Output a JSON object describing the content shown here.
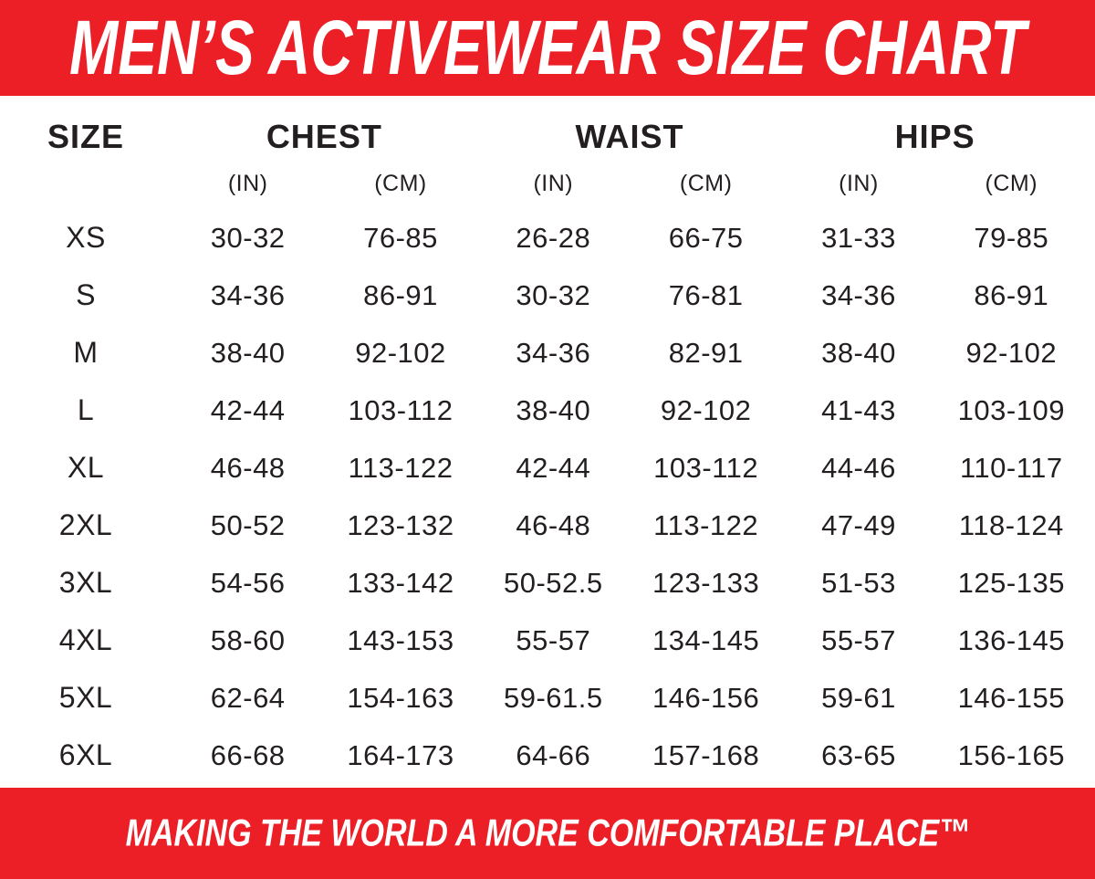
{
  "header": {
    "title": "MEN’S ACTIVEWEAR SIZE CHART"
  },
  "footer": {
    "tagline": "MAKING THE WORLD A MORE COMFORTABLE PLACE™"
  },
  "colors": {
    "banner_red": "#EC1E26",
    "banner_text": "#FFFFFF",
    "text_dark": "#231F20",
    "background": "#FFFFFF"
  },
  "table": {
    "size_header": "SIZE",
    "groups": [
      {
        "label": "CHEST",
        "units": [
          "(IN)",
          "(CM)"
        ]
      },
      {
        "label": "WAIST",
        "units": [
          "(IN)",
          "(CM)"
        ]
      },
      {
        "label": "HIPS",
        "units": [
          "(IN)",
          "(CM)"
        ]
      }
    ],
    "rows": [
      {
        "size": "XS",
        "chest_in": "30-32",
        "chest_cm": "76-85",
        "waist_in": "26-28",
        "waist_cm": "66-75",
        "hips_in": "31-33",
        "hips_cm": "79-85"
      },
      {
        "size": "S",
        "chest_in": "34-36",
        "chest_cm": "86-91",
        "waist_in": "30-32",
        "waist_cm": "76-81",
        "hips_in": "34-36",
        "hips_cm": "86-91"
      },
      {
        "size": "M",
        "chest_in": "38-40",
        "chest_cm": "92-102",
        "waist_in": "34-36",
        "waist_cm": "82-91",
        "hips_in": "38-40",
        "hips_cm": "92-102"
      },
      {
        "size": "L",
        "chest_in": "42-44",
        "chest_cm": "103-112",
        "waist_in": "38-40",
        "waist_cm": "92-102",
        "hips_in": "41-43",
        "hips_cm": "103-109"
      },
      {
        "size": "XL",
        "chest_in": "46-48",
        "chest_cm": "113-122",
        "waist_in": "42-44",
        "waist_cm": "103-112",
        "hips_in": "44-46",
        "hips_cm": "110-117"
      },
      {
        "size": "2XL",
        "chest_in": "50-52",
        "chest_cm": "123-132",
        "waist_in": "46-48",
        "waist_cm": "113-122",
        "hips_in": "47-49",
        "hips_cm": "118-124"
      },
      {
        "size": "3XL",
        "chest_in": "54-56",
        "chest_cm": "133-142",
        "waist_in": "50-52.5",
        "waist_cm": "123-133",
        "hips_in": "51-53",
        "hips_cm": "125-135"
      },
      {
        "size": "4XL",
        "chest_in": "58-60",
        "chest_cm": "143-153",
        "waist_in": "55-57",
        "waist_cm": "134-145",
        "hips_in": "55-57",
        "hips_cm": "136-145"
      },
      {
        "size": "5XL",
        "chest_in": "62-64",
        "chest_cm": "154-163",
        "waist_in": "59-61.5",
        "waist_cm": "146-156",
        "hips_in": "59-61",
        "hips_cm": "146-155"
      },
      {
        "size": "6XL",
        "chest_in": "66-68",
        "chest_cm": "164-173",
        "waist_in": "64-66",
        "waist_cm": "157-168",
        "hips_in": "63-65",
        "hips_cm": "156-165"
      }
    ]
  }
}
